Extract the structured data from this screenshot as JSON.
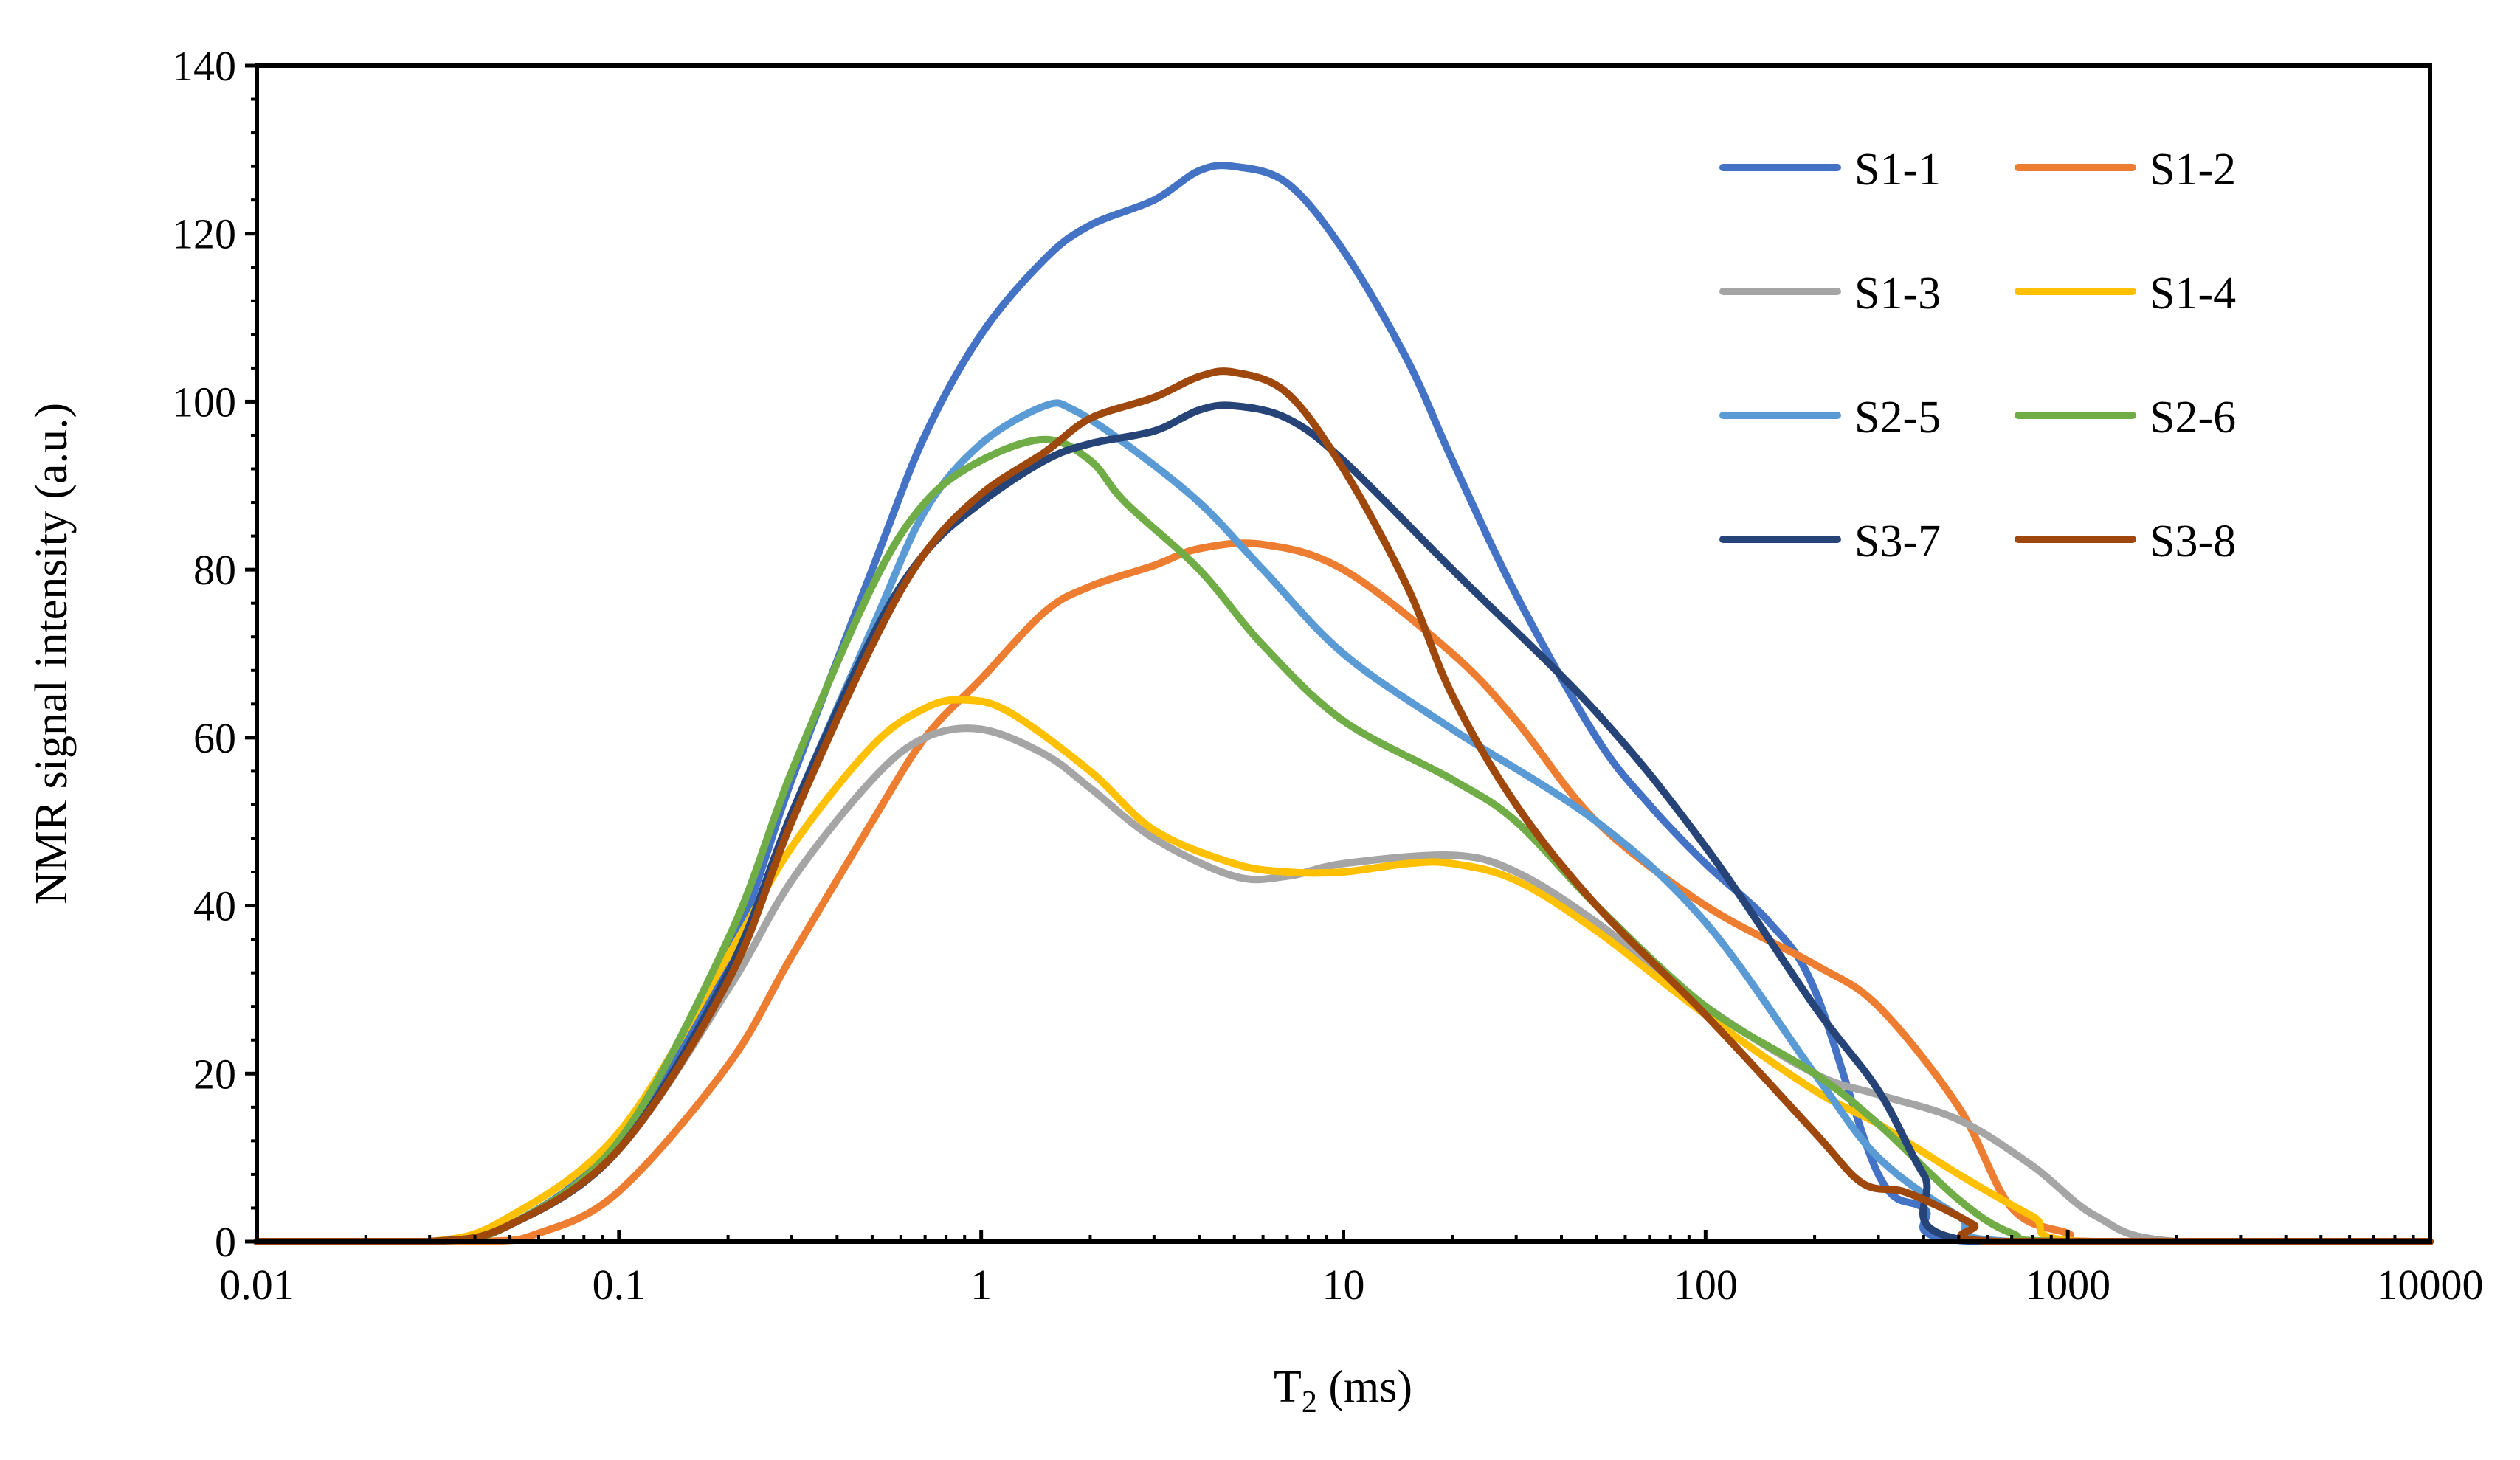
{
  "chart_data": {
    "type": "line",
    "title": "",
    "xlabel": "T",
    "xlabel_sub": "2",
    "xlabel_unit": " (ms)",
    "ylabel": "NMR signal intensity (a.u.)",
    "x_scale": "log",
    "xlim": [
      0.01,
      10000
    ],
    "ylim": [
      0,
      140
    ],
    "x_ticks": [
      0.01,
      0.1,
      1,
      10,
      100,
      1000,
      10000
    ],
    "x_tick_labels": [
      "0.01",
      "0.1",
      "1",
      "10",
      "100",
      "1000",
      "10000"
    ],
    "y_ticks": [
      0,
      20,
      40,
      60,
      80,
      100,
      120,
      140
    ],
    "y_tick_labels": [
      "0",
      "20",
      "40",
      "60",
      "80",
      "100",
      "120",
      "140"
    ],
    "grid": false,
    "legend_position": "top-right",
    "series": [
      {
        "name": "S1-1",
        "color": "#4472C4",
        "points": [
          [
            0.01,
            0
          ],
          [
            0.03,
            0
          ],
          [
            0.05,
            2
          ],
          [
            0.1,
            12
          ],
          [
            0.2,
            34
          ],
          [
            0.3,
            55
          ],
          [
            0.5,
            80
          ],
          [
            0.7,
            96
          ],
          [
            1,
            108
          ],
          [
            1.5,
            117
          ],
          [
            2,
            121
          ],
          [
            3,
            124
          ],
          [
            4,
            127.5
          ],
          [
            5,
            128
          ],
          [
            7,
            126
          ],
          [
            10,
            118
          ],
          [
            15,
            105
          ],
          [
            20,
            93
          ],
          [
            30,
            77
          ],
          [
            50,
            60
          ],
          [
            70,
            52
          ],
          [
            100,
            45
          ],
          [
            150,
            38
          ],
          [
            200,
            30
          ],
          [
            300,
            8
          ],
          [
            400,
            4
          ],
          [
            550,
            0
          ],
          [
            10000,
            0
          ]
        ]
      },
      {
        "name": "S1-2",
        "color": "#ED7D31",
        "points": [
          [
            0.01,
            0
          ],
          [
            0.04,
            0
          ],
          [
            0.06,
            1
          ],
          [
            0.1,
            6
          ],
          [
            0.2,
            21
          ],
          [
            0.3,
            34
          ],
          [
            0.5,
            50
          ],
          [
            0.7,
            60
          ],
          [
            1,
            67
          ],
          [
            1.5,
            75
          ],
          [
            2,
            78
          ],
          [
            3,
            80.5
          ],
          [
            4,
            82.5
          ],
          [
            6,
            83
          ],
          [
            10,
            80
          ],
          [
            20,
            70
          ],
          [
            30,
            62
          ],
          [
            50,
            50
          ],
          [
            100,
            40
          ],
          [
            200,
            33
          ],
          [
            300,
            28
          ],
          [
            500,
            16
          ],
          [
            700,
            4
          ],
          [
            1000,
            1
          ],
          [
            1200,
            0
          ],
          [
            10000,
            0
          ]
        ]
      },
      {
        "name": "S1-3",
        "color": "#A5A5A5",
        "points": [
          [
            0.01,
            0
          ],
          [
            0.03,
            0
          ],
          [
            0.05,
            2
          ],
          [
            0.1,
            11
          ],
          [
            0.2,
            30
          ],
          [
            0.3,
            43
          ],
          [
            0.5,
            55
          ],
          [
            0.7,
            60
          ],
          [
            1,
            61
          ],
          [
            1.5,
            58
          ],
          [
            2,
            54
          ],
          [
            3,
            48
          ],
          [
            5,
            43.5
          ],
          [
            7,
            43.5
          ],
          [
            10,
            45
          ],
          [
            20,
            46
          ],
          [
            30,
            44
          ],
          [
            50,
            38
          ],
          [
            100,
            28
          ],
          [
            200,
            20
          ],
          [
            300,
            17.5
          ],
          [
            500,
            14.5
          ],
          [
            800,
            9
          ],
          [
            1200,
            3
          ],
          [
            2000,
            0
          ],
          [
            10000,
            0
          ]
        ]
      },
      {
        "name": "S1-4",
        "color": "#FFC000",
        "points": [
          [
            0.01,
            0
          ],
          [
            0.03,
            0
          ],
          [
            0.05,
            3
          ],
          [
            0.1,
            13
          ],
          [
            0.2,
            34
          ],
          [
            0.3,
            47
          ],
          [
            0.5,
            59
          ],
          [
            0.7,
            63.5
          ],
          [
            0.9,
            64.5
          ],
          [
            1.2,
            63
          ],
          [
            2,
            56
          ],
          [
            3,
            49
          ],
          [
            5,
            45
          ],
          [
            7,
            44
          ],
          [
            10,
            44
          ],
          [
            15,
            45
          ],
          [
            20,
            45
          ],
          [
            30,
            43
          ],
          [
            50,
            37
          ],
          [
            100,
            27
          ],
          [
            200,
            18
          ],
          [
            300,
            14
          ],
          [
            500,
            8
          ],
          [
            800,
            3
          ],
          [
            1100,
            0
          ],
          [
            10000,
            0
          ]
        ]
      },
      {
        "name": "S2-5",
        "color": "#5B9BD5",
        "points": [
          [
            0.01,
            0
          ],
          [
            0.03,
            0
          ],
          [
            0.05,
            2
          ],
          [
            0.1,
            11
          ],
          [
            0.2,
            32
          ],
          [
            0.3,
            51
          ],
          [
            0.5,
            73
          ],
          [
            0.7,
            87
          ],
          [
            1,
            95
          ],
          [
            1.5,
            99.5
          ],
          [
            1.8,
            99
          ],
          [
            2.5,
            95
          ],
          [
            4,
            88
          ],
          [
            6,
            80
          ],
          [
            10,
            70
          ],
          [
            20,
            61
          ],
          [
            50,
            50
          ],
          [
            100,
            38
          ],
          [
            200,
            20
          ],
          [
            300,
            10
          ],
          [
            500,
            3
          ],
          [
            700,
            0
          ],
          [
            10000,
            0
          ]
        ]
      },
      {
        "name": "S2-6",
        "color": "#70AD47",
        "points": [
          [
            0.01,
            0
          ],
          [
            0.03,
            0
          ],
          [
            0.05,
            2
          ],
          [
            0.1,
            12
          ],
          [
            0.2,
            36
          ],
          [
            0.3,
            56
          ],
          [
            0.5,
            78
          ],
          [
            0.7,
            88
          ],
          [
            1,
            93
          ],
          [
            1.5,
            95.5
          ],
          [
            2,
            93
          ],
          [
            2.5,
            88
          ],
          [
            4,
            80
          ],
          [
            6,
            71
          ],
          [
            10,
            62
          ],
          [
            20,
            55
          ],
          [
            30,
            50
          ],
          [
            50,
            40
          ],
          [
            100,
            28
          ],
          [
            200,
            20
          ],
          [
            300,
            14
          ],
          [
            500,
            5
          ],
          [
            700,
            1
          ],
          [
            1000,
            0
          ],
          [
            10000,
            0
          ]
        ]
      },
      {
        "name": "S3-7",
        "color": "#264478",
        "points": [
          [
            0.01,
            0
          ],
          [
            0.03,
            0
          ],
          [
            0.05,
            2
          ],
          [
            0.1,
            11
          ],
          [
            0.2,
            32
          ],
          [
            0.3,
            51
          ],
          [
            0.5,
            72
          ],
          [
            0.7,
            82
          ],
          [
            1,
            88
          ],
          [
            1.5,
            93
          ],
          [
            2,
            95
          ],
          [
            3,
            96.5
          ],
          [
            4,
            99
          ],
          [
            5,
            99.5
          ],
          [
            7,
            98
          ],
          [
            10,
            93
          ],
          [
            20,
            80
          ],
          [
            50,
            63
          ],
          [
            100,
            47
          ],
          [
            200,
            28
          ],
          [
            300,
            18
          ],
          [
            400,
            8
          ],
          [
            550,
            0
          ],
          [
            10000,
            0
          ]
        ]
      },
      {
        "name": "S3-8",
        "color": "#9E480E",
        "points": [
          [
            0.01,
            0
          ],
          [
            0.03,
            0
          ],
          [
            0.05,
            2
          ],
          [
            0.1,
            11
          ],
          [
            0.2,
            31
          ],
          [
            0.3,
            50
          ],
          [
            0.5,
            71
          ],
          [
            0.7,
            82
          ],
          [
            1,
            89
          ],
          [
            1.5,
            94
          ],
          [
            2,
            98
          ],
          [
            3,
            100.5
          ],
          [
            4,
            103
          ],
          [
            5,
            103.5
          ],
          [
            7,
            101
          ],
          [
            10,
            92
          ],
          [
            15,
            78
          ],
          [
            20,
            65
          ],
          [
            30,
            52
          ],
          [
            50,
            40
          ],
          [
            100,
            27
          ],
          [
            200,
            13
          ],
          [
            270,
            7
          ],
          [
            350,
            6
          ],
          [
            450,
            4
          ],
          [
            550,
            2
          ],
          [
            650,
            0
          ],
          [
            10000,
            0
          ]
        ]
      }
    ]
  }
}
